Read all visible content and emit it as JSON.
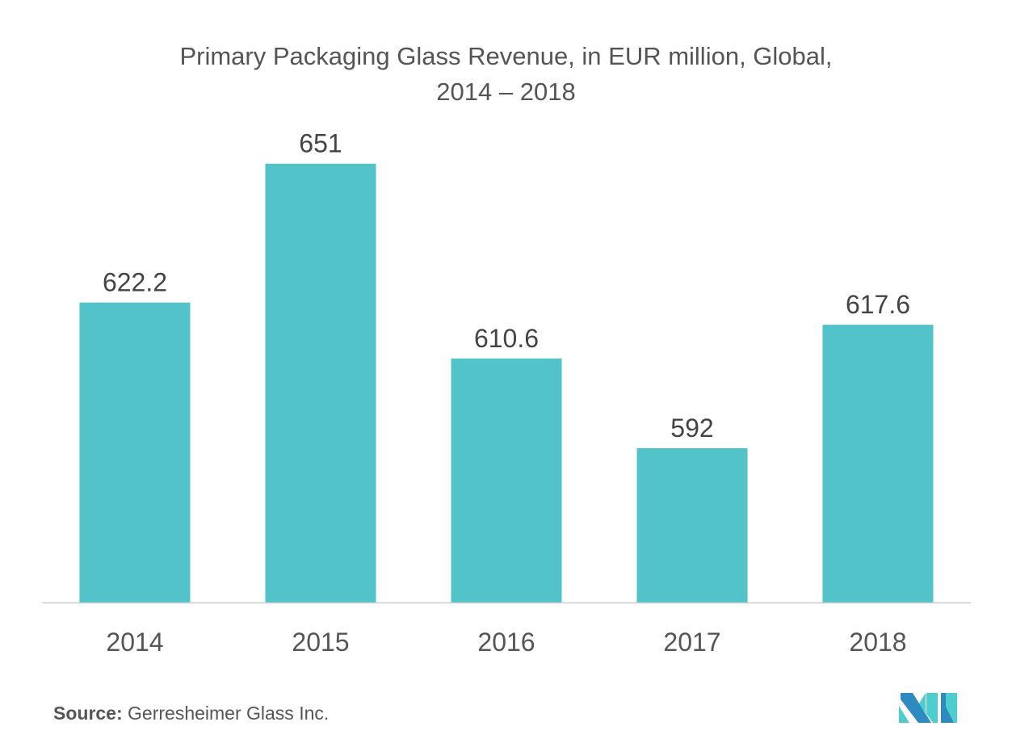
{
  "chart_data": {
    "type": "bar",
    "title": "Primary Packaging Glass Revenue, in EUR million, Global,",
    "subtitle": "2014 – 2018",
    "categories": [
      "2014",
      "2015",
      "2016",
      "2017",
      "2018"
    ],
    "values": [
      622.2,
      651,
      610.6,
      592,
      617.6
    ],
    "value_labels": [
      "622.2",
      "651",
      "610.6",
      "592",
      "617.6"
    ],
    "xlabel": "",
    "ylabel": "",
    "ylim": [
      560,
      660
    ],
    "grid": false,
    "bar_color": "#52c3c9",
    "axis_color": "#cccccc"
  },
  "source": {
    "label": "Source:",
    "text": " Gerresheimer Glass Inc."
  },
  "colors": {
    "logo_dark": "#2e8ac0",
    "logo_light": "#4ecdcf"
  }
}
